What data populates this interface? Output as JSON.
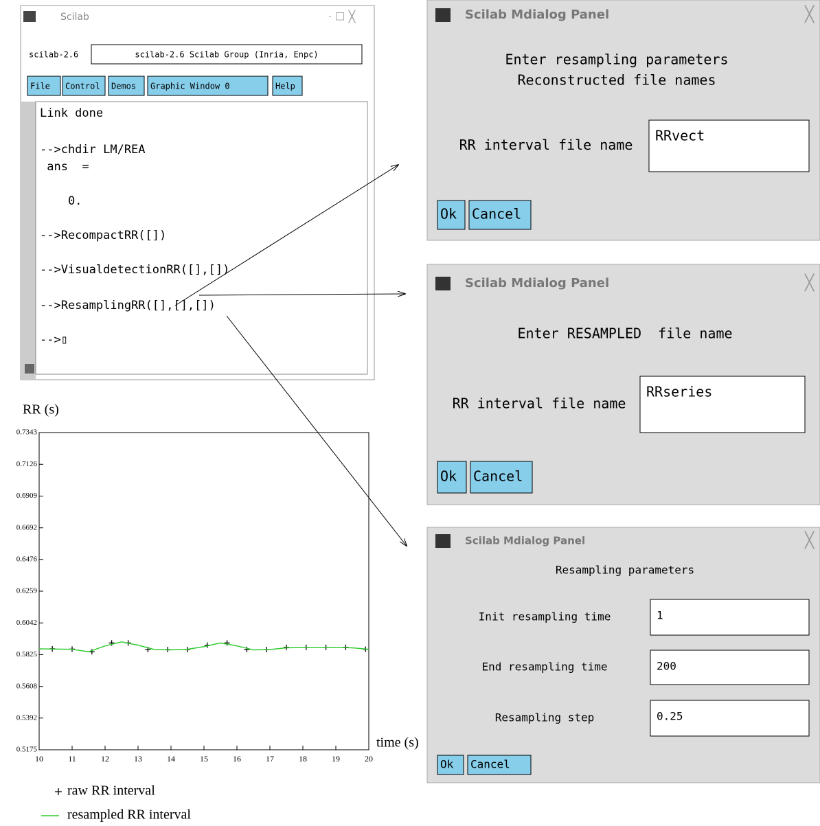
{
  "window": {
    "title": "Scilab",
    "status_label": "scilab-2.6",
    "status_text": "scilab-2.6 Scilab Group (Inria, Enpc)",
    "menu": [
      "File",
      "Control",
      "Demos",
      "Graphic Window  0",
      "Help"
    ],
    "console": [
      "Link done",
      "-->chdir LM/REA",
      " ans  =",
      "    0.",
      "-->RecompactRR([])",
      "-->VisualdetectionRR([],[])",
      "-->ResamplingRR([],[],[])",
      "-->▯"
    ]
  },
  "dialogs": [
    {
      "title": "Scilab Mdialog Panel",
      "prompt": [
        "Enter resampling parameters",
        "Reconstructed file names"
      ],
      "fields": [
        {
          "label": "RR interval file name",
          "value": "RRvect"
        }
      ],
      "buttons": [
        "Ok",
        "Cancel"
      ]
    },
    {
      "title": "Scilab Mdialog Panel",
      "prompt": [
        "Enter RESAMPLED  file name"
      ],
      "fields": [
        {
          "label": "RR interval file name",
          "value": "RRseries"
        }
      ],
      "buttons": [
        "Ok",
        "Cancel"
      ]
    },
    {
      "title": "Scilab Mdialog Panel",
      "prompt": [
        "Resampling parameters"
      ],
      "fields": [
        {
          "label": "Init resampling time",
          "value": "1"
        },
        {
          "label": "End resampling time",
          "value": "200"
        },
        {
          "label": "Resampling step",
          "value": "0.25"
        }
      ],
      "buttons": [
        "Ok",
        "Cancel"
      ]
    }
  ],
  "chart_data": {
    "type": "line",
    "y_label": "RR (s)",
    "x_label": "time (s)",
    "xlim": [
      10,
      20
    ],
    "xticks": [
      10,
      11,
      12,
      13,
      14,
      15,
      16,
      17,
      18,
      19,
      20
    ],
    "ylim": [
      0.5175,
      0.7343
    ],
    "yticks": [
      0.5175,
      0.5392,
      0.5608,
      0.5825,
      0.6042,
      0.6259,
      0.6476,
      0.6692,
      0.6909,
      0.7126,
      0.7343
    ],
    "series": [
      {
        "name": "raw RR interval",
        "color": "#000000",
        "marker": "+",
        "x": [
          10.4,
          11,
          11.6,
          12.2,
          12.7,
          13.3,
          13.9,
          14.5,
          15.1,
          15.7,
          16.3,
          16.9,
          17.5,
          18.1,
          18.7,
          19.3,
          19.9
        ],
        "values": [
          0.5865,
          0.5863,
          0.5845,
          0.5905,
          0.5905,
          0.586,
          0.586,
          0.586,
          0.589,
          0.5905,
          0.586,
          0.586,
          0.5875,
          0.5875,
          0.5875,
          0.5875,
          0.5862
        ]
      },
      {
        "name": "resampled RR interval",
        "color": "#33cc33",
        "x": [
          10,
          10.5,
          11,
          11.5,
          12,
          12.5,
          13,
          13.5,
          14,
          14.5,
          15,
          15.5,
          16,
          16.5,
          17,
          17.5,
          18,
          18.5,
          19,
          19.5,
          20
        ],
        "values": [
          0.5865,
          0.5863,
          0.5862,
          0.5845,
          0.5885,
          0.5912,
          0.589,
          0.586,
          0.5858,
          0.5862,
          0.588,
          0.5905,
          0.5885,
          0.5858,
          0.586,
          0.5872,
          0.5875,
          0.5875,
          0.5875,
          0.5872,
          0.5862
        ]
      }
    ]
  }
}
